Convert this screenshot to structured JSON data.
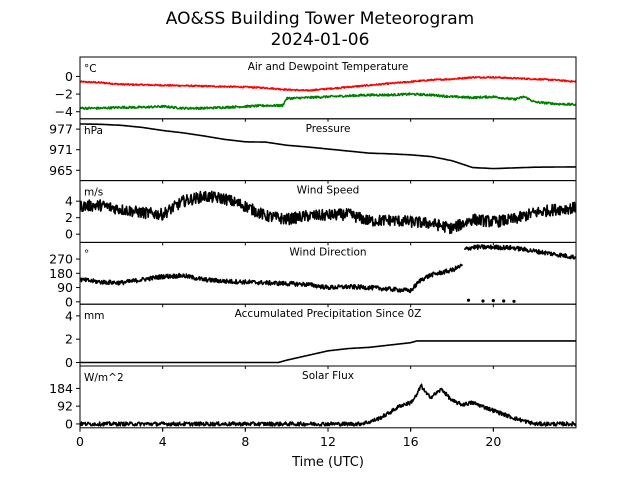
{
  "chart_data": {
    "type": "line",
    "title": "AO&SS Building Tower Meteorogram",
    "subtitle": "2024-01-06",
    "xlabel": "Time (UTC)",
    "xlim": [
      0,
      24
    ],
    "x_ticks": [
      0,
      4,
      8,
      12,
      16,
      20
    ],
    "panels": [
      {
        "id": "temperature",
        "title": "Air and Dewpoint Temperature",
        "unit": "°C",
        "ylim": [
          -4.8,
          2.2
        ],
        "y_ticks": [
          0,
          -2,
          -4
        ],
        "y_tick_labels": [
          "0",
          "−2",
          "−4"
        ],
        "series": [
          {
            "color": "#ff0000",
            "noise": 0.08,
            "points": [
              [
                0,
                -0.6
              ],
              [
                1,
                -0.7
              ],
              [
                2,
                -0.9
              ],
              [
                4,
                -1.0
              ],
              [
                6,
                -1.1
              ],
              [
                8,
                -1.2
              ],
              [
                9,
                -1.3
              ],
              [
                10,
                -1.5
              ],
              [
                11,
                -1.6
              ],
              [
                12,
                -1.4
              ],
              [
                13,
                -1.2
              ],
              [
                14,
                -1.0
              ],
              [
                15,
                -0.8
              ],
              [
                16,
                -0.6
              ],
              [
                17,
                -0.4
              ],
              [
                18,
                -0.3
              ],
              [
                19,
                -0.1
              ],
              [
                20,
                -0.1
              ],
              [
                21,
                -0.2
              ],
              [
                22,
                -0.3
              ],
              [
                23,
                -0.4
              ],
              [
                24,
                -0.6
              ]
            ]
          },
          {
            "color": "#008000",
            "noise": 0.12,
            "points": [
              [
                0,
                -3.6
              ],
              [
                1,
                -3.6
              ],
              [
                2,
                -3.5
              ],
              [
                3,
                -3.5
              ],
              [
                4,
                -3.4
              ],
              [
                5,
                -3.6
              ],
              [
                6,
                -3.6
              ],
              [
                7,
                -3.5
              ],
              [
                8,
                -3.4
              ],
              [
                9,
                -3.3
              ],
              [
                9.8,
                -3.3
              ],
              [
                10,
                -2.5
              ],
              [
                11,
                -2.4
              ],
              [
                12,
                -2.3
              ],
              [
                13,
                -2.2
              ],
              [
                14,
                -2.1
              ],
              [
                15,
                -2.1
              ],
              [
                16,
                -2.0
              ],
              [
                17,
                -2.1
              ],
              [
                18,
                -2.3
              ],
              [
                19,
                -2.4
              ],
              [
                20,
                -2.3
              ],
              [
                21,
                -2.6
              ],
              [
                21.5,
                -2.3
              ],
              [
                22,
                -2.9
              ],
              [
                23,
                -3.1
              ],
              [
                24,
                -3.2
              ]
            ]
          }
        ]
      },
      {
        "id": "pressure",
        "title": "Pressure",
        "unit": "hPa",
        "ylim": [
          962,
          980
        ],
        "y_ticks": [
          977,
          971,
          965
        ],
        "y_tick_labels": [
          "977",
          "971",
          "965"
        ],
        "series": [
          {
            "color": "#000000",
            "noise": 0,
            "points": [
              [
                0,
                978.5
              ],
              [
                1,
                978.4
              ],
              [
                2,
                978.1
              ],
              [
                3,
                977.5
              ],
              [
                4,
                976.6
              ],
              [
                5,
                975.9
              ],
              [
                6,
                975.0
              ],
              [
                7,
                974.0
              ],
              [
                8,
                973.3
              ],
              [
                9,
                973.2
              ],
              [
                10,
                972.3
              ],
              [
                11,
                971.8
              ],
              [
                12,
                971.2
              ],
              [
                13,
                970.6
              ],
              [
                14,
                970.0
              ],
              [
                15,
                969.8
              ],
              [
                16,
                969.5
              ],
              [
                17,
                969.0
              ],
              [
                18,
                967.8
              ],
              [
                19,
                965.8
              ],
              [
                20,
                965.5
              ],
              [
                21,
                965.7
              ],
              [
                22,
                965.9
              ],
              [
                24,
                966.0
              ]
            ]
          }
        ]
      },
      {
        "id": "wind_speed",
        "title": "Wind Speed",
        "unit": "m/s",
        "ylim": [
          -1,
          6.5
        ],
        "y_ticks": [
          4,
          2,
          0
        ],
        "y_tick_labels": [
          "4",
          "2",
          "0"
        ],
        "series": [
          {
            "color": "#000000",
            "noise": 0.7,
            "points": [
              [
                0,
                3.4
              ],
              [
                1,
                3.5
              ],
              [
                2,
                3.0
              ],
              [
                3,
                2.6
              ],
              [
                4,
                2.4
              ],
              [
                5,
                4.0
              ],
              [
                6,
                4.6
              ],
              [
                7,
                4.3
              ],
              [
                8,
                3.4
              ],
              [
                9,
                2.2
              ],
              [
                10,
                1.8
              ],
              [
                11,
                2.2
              ],
              [
                12,
                2.3
              ],
              [
                13,
                2.4
              ],
              [
                14,
                1.6
              ],
              [
                15,
                1.7
              ],
              [
                16,
                1.5
              ],
              [
                17,
                1.3
              ],
              [
                18,
                0.7
              ],
              [
                19,
                1.8
              ],
              [
                20,
                1.5
              ],
              [
                21,
                1.8
              ],
              [
                22,
                2.6
              ],
              [
                23,
                3.0
              ],
              [
                24,
                3.2
              ]
            ]
          }
        ]
      },
      {
        "id": "wind_direction",
        "title": "Wind Direction",
        "unit": "°",
        "ylim": [
          -15,
          375
        ],
        "y_ticks": [
          270,
          180,
          90,
          0
        ],
        "y_tick_labels": [
          "270",
          "180",
          "90",
          "0"
        ],
        "series": [
          {
            "color": "#000000",
            "noise": 14,
            "points": [
              [
                0,
                140
              ],
              [
                1,
                125
              ],
              [
                2,
                120
              ],
              [
                3,
                140
              ],
              [
                4,
                160
              ],
              [
                5,
                165
              ],
              [
                6,
                140
              ],
              [
                7,
                130
              ],
              [
                8,
                125
              ],
              [
                9,
                120
              ],
              [
                10,
                115
              ],
              [
                11,
                110
              ],
              [
                12,
                90
              ],
              [
                13,
                95
              ],
              [
                14,
                90
              ],
              [
                15,
                80
              ],
              [
                16,
                70
              ],
              [
                16.5,
                140
              ],
              [
                17,
                170
              ],
              [
                17.5,
                185
              ],
              [
                18,
                200
              ],
              [
                18.5,
                230
              ]
            ]
          },
          {
            "color": "#000000",
            "noise": 14,
            "points": [
              [
                18.6,
                330
              ],
              [
                19,
                345
              ],
              [
                20,
                345
              ],
              [
                21,
                340
              ],
              [
                22,
                320
              ],
              [
                23,
                300
              ],
              [
                24,
                280
              ]
            ]
          },
          {
            "color": "#000000",
            "noise": 6,
            "dots": true,
            "points": [
              [
                18.8,
                10
              ],
              [
                19.5,
                5
              ],
              [
                20,
                8
              ],
              [
                20.5,
                5
              ],
              [
                21,
                3
              ]
            ]
          }
        ]
      },
      {
        "id": "precip",
        "title": "Accumulated Precipitation Since 0Z",
        "unit": "mm",
        "ylim": [
          -0.3,
          5
        ],
        "y_ticks": [
          4,
          2,
          0
        ],
        "y_tick_labels": [
          "4",
          "2",
          "0"
        ],
        "series": [
          {
            "color": "#000000",
            "noise": 0,
            "points": [
              [
                0,
                0
              ],
              [
                9.6,
                0
              ],
              [
                10,
                0.2
              ],
              [
                11,
                0.6
              ],
              [
                12,
                1.0
              ],
              [
                13,
                1.2
              ],
              [
                14,
                1.3
              ],
              [
                15,
                1.5
              ],
              [
                16,
                1.7
              ],
              [
                16.3,
                1.85
              ],
              [
                17,
                1.85
              ],
              [
                24,
                1.85
              ]
            ]
          }
        ]
      },
      {
        "id": "solar",
        "title": "Solar Flux",
        "unit": "W/m^2",
        "ylim": [
          -20,
          300
        ],
        "y_ticks": [
          184,
          92,
          0
        ],
        "y_tick_labels": [
          "184",
          "92",
          "0"
        ],
        "series": [
          {
            "color": "#000000",
            "noise": 10,
            "points": [
              [
                0,
                0
              ],
              [
                13.5,
                0
              ],
              [
                14,
                10
              ],
              [
                14.5,
                30
              ],
              [
                15,
                60
              ],
              [
                15.5,
                95
              ],
              [
                16,
                110
              ],
              [
                16.3,
                150
              ],
              [
                16.5,
                200
              ],
              [
                16.8,
                150
              ],
              [
                17,
                140
              ],
              [
                17.5,
                180
              ],
              [
                18,
                120
              ],
              [
                18.5,
                100
              ],
              [
                19,
                110
              ],
              [
                19.5,
                90
              ],
              [
                20,
                70
              ],
              [
                20.5,
                50
              ],
              [
                21,
                30
              ],
              [
                21.5,
                15
              ],
              [
                22,
                0
              ],
              [
                24,
                0
              ]
            ]
          }
        ]
      }
    ]
  }
}
